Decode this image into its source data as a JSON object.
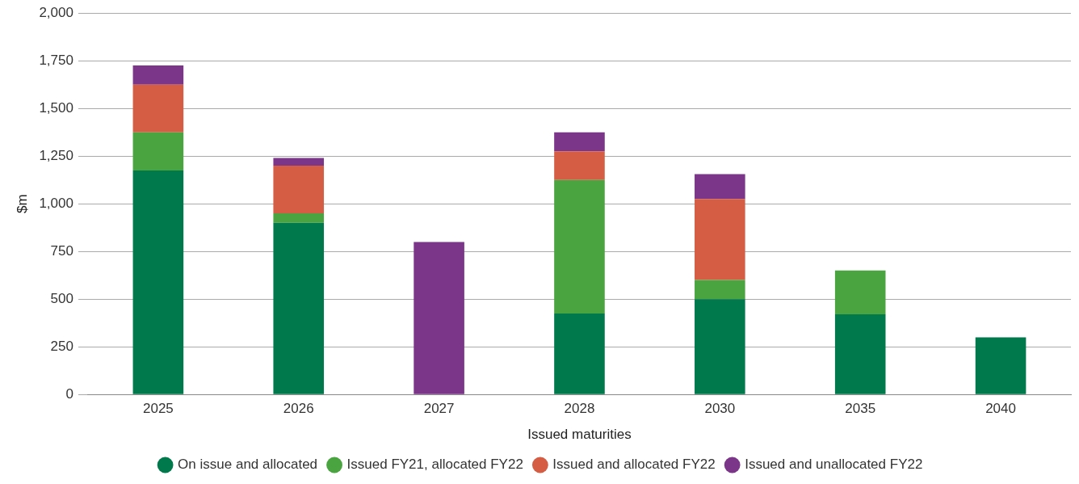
{
  "chart_data": {
    "type": "bar",
    "stacked": true,
    "xlabel": "Issued maturities",
    "ylabel": "$m",
    "categories": [
      "2025",
      "2026",
      "2027",
      "2028",
      "2030",
      "2035",
      "2040"
    ],
    "series": [
      {
        "name": "On issue and allocated",
        "color": "#007a4d",
        "values": [
          1175,
          900,
          0,
          425,
          500,
          420,
          300
        ]
      },
      {
        "name": "Issued FY21, allocated FY22",
        "color": "#4aa541",
        "values": [
          200,
          50,
          0,
          700,
          100,
          230,
          0
        ]
      },
      {
        "name": "Issued and allocated FY22",
        "color": "#d45d44",
        "values": [
          250,
          250,
          0,
          150,
          425,
          0,
          0
        ]
      },
      {
        "name": "Issued and unallocated FY22",
        "color": "#7b3589",
        "values": [
          100,
          40,
          800,
          100,
          130,
          0,
          0
        ]
      }
    ],
    "ylim": [
      0,
      2000
    ],
    "yticks": [
      0,
      250,
      500,
      750,
      {
        "value": 1000,
        "label": "1,000"
      },
      {
        "value": 1250,
        "label": "1,250"
      },
      {
        "value": 1500,
        "label": "1,500"
      },
      {
        "value": 1750,
        "label": "1,750"
      },
      {
        "value": 2000,
        "label": "2,000"
      }
    ],
    "grid": "y",
    "legend": "bottom"
  }
}
